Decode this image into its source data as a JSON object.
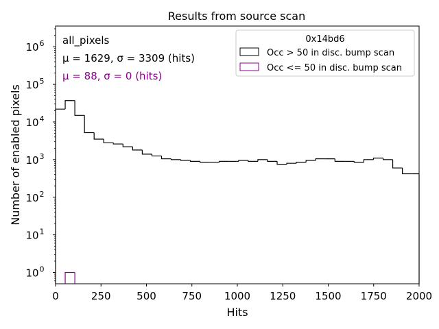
{
  "chart_data": {
    "type": "histogram",
    "title": "Results from source scan",
    "xlabel": "Hits",
    "ylabel": "Number of enabled pixels",
    "xlim": [
      0,
      2000
    ],
    "ylim_log10": [
      -0.3,
      6.55
    ],
    "yscale": "log",
    "grid": false,
    "x_ticks": [
      0,
      250,
      500,
      750,
      1000,
      1250,
      1500,
      1750,
      2000
    ],
    "x_tick_labels": [
      "0",
      "250",
      "500",
      "750",
      "1000",
      "1250",
      "1500",
      "1750",
      "2000"
    ],
    "y_ticks": [
      0,
      1,
      2,
      3,
      4,
      5,
      6
    ],
    "y_tick_labels": [
      {
        "base": "10",
        "exp": "0"
      },
      {
        "base": "10",
        "exp": "1"
      },
      {
        "base": "10",
        "exp": "2"
      },
      {
        "base": "10",
        "exp": "3"
      },
      {
        "base": "10",
        "exp": "4"
      },
      {
        "base": "10",
        "exp": "5"
      },
      {
        "base": "10",
        "exp": "6"
      }
    ],
    "bin_width": 53,
    "annotations": {
      "name": "all_pixels",
      "stats_black": "μ = 1629, σ = 3309 (hits)",
      "stats_purple": "μ = 88, σ = 0 (hits)"
    },
    "legend": {
      "position": "top-right",
      "title": "0x14bd6",
      "entries": [
        "Occ > 50 in disc. bump scan",
        "Occ <= 50 in disc. bump scan"
      ]
    },
    "series": [
      {
        "name": "Occ > 50 in disc. bump scan",
        "color": "#000000",
        "bin_edges": [
          0,
          53,
          106,
          159,
          212,
          265,
          318,
          371,
          424,
          477,
          530,
          583,
          636,
          689,
          742,
          795,
          848,
          901,
          954,
          1007,
          1060,
          1113,
          1166,
          1219,
          1272,
          1325,
          1378,
          1431,
          1484,
          1537,
          1590,
          1643,
          1696,
          1749,
          1802,
          1855,
          1908,
          1961,
          2000
        ],
        "values": [
          22000,
          37000,
          15000,
          5200,
          3500,
          2800,
          2600,
          2200,
          1800,
          1400,
          1250,
          1050,
          1000,
          950,
          900,
          850,
          850,
          900,
          900,
          950,
          900,
          1000,
          900,
          750,
          800,
          850,
          950,
          1050,
          1050,
          900,
          900,
          850,
          1000,
          1100,
          1000,
          600,
          420,
          420
        ]
      },
      {
        "name": "Occ <= 50 in disc. bump scan",
        "color": "#8b008b",
        "bin_edges": [
          53,
          106
        ],
        "values": [
          1
        ]
      }
    ]
  }
}
